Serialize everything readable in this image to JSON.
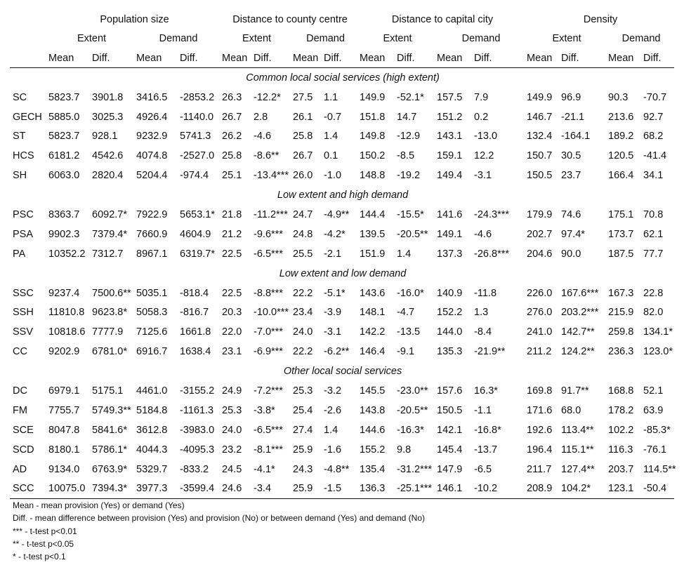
{
  "groups": [
    "Population size",
    "Distance to county centre",
    "Distance to capital city",
    "Density"
  ],
  "subgroups": [
    "Extent",
    "Demand"
  ],
  "stats": [
    "Mean",
    "Diff."
  ],
  "sections": [
    {
      "title": "Common local social services (high extent)",
      "rows": [
        {
          "label": "SC",
          "cells": [
            "5823.7",
            "3901.8",
            "3416.5",
            "-2853.2",
            "26.3",
            "-12.2*",
            "27.5",
            "1.1",
            "149.9",
            "-52.1*",
            "157.5",
            "7.9",
            "149.9",
            "96.9",
            "90.3",
            "-70.7"
          ]
        },
        {
          "label": "GECH",
          "cells": [
            "5885.0",
            "3025.3",
            "4926.4",
            "-1140.0",
            "26.7",
            "2.8",
            "26.1",
            "-0.7",
            "151.8",
            "14.7",
            "151.2",
            "0.2",
            "146.7",
            "-21.1",
            "213.6",
            "92.7"
          ]
        },
        {
          "label": "ST",
          "cells": [
            "5823.7",
            "928.1",
            "9232.9",
            "5741.3",
            "26.2",
            "-4.6",
            "25.8",
            "1.4",
            "149.8",
            "-12.9",
            "143.1",
            "-13.0",
            "132.4",
            "-164.1",
            "189.2",
            "68.2"
          ]
        },
        {
          "label": "HCS",
          "cells": [
            "6181.2",
            "4542.6",
            "4074.8",
            "-2527.0",
            "25.8",
            "-8.6**",
            "26.7",
            "0.1",
            "150.2",
            "-8.5",
            "159.1",
            "12.2",
            "150.7",
            "30.5",
            "120.5",
            "-41.4"
          ]
        },
        {
          "label": "SH",
          "cells": [
            "6063.0",
            "2820.4",
            "5204.4",
            "-974.4",
            "25.1",
            "-13.4***",
            "26.0",
            "-1.0",
            "148.8",
            "-19.2",
            "149.4",
            "-3.1",
            "150.5",
            "23.7",
            "166.4",
            "34.1"
          ]
        }
      ]
    },
    {
      "title": "Low extent and high demand",
      "rows": [
        {
          "label": "PSC",
          "cells": [
            "8363.7",
            "6092.7*",
            "7922.9",
            "5653.1*",
            "21.8",
            "-11.2***",
            "24.7",
            "-4.9**",
            "144.4",
            "-15.5*",
            "141.6",
            "-24.3***",
            "179.9",
            "74.6",
            "175.1",
            "70.8"
          ]
        },
        {
          "label": "PSA",
          "cells": [
            "9902.3",
            "7379.4*",
            "7660.9",
            "4604.9",
            "21.2",
            "-9.6***",
            "24.8",
            "-4.2*",
            "139.5",
            "-20.5**",
            "149.1",
            "-4.6",
            "202.7",
            "97.4*",
            "173.7",
            "62.1"
          ]
        },
        {
          "label": "PA",
          "cells": [
            "10352.2",
            "7312.7",
            "8967.1",
            "6319.7*",
            "22.5",
            "-6.5***",
            "25.5",
            "-2.1",
            "151.9",
            "1.4",
            "137.3",
            "-26.8***",
            "204.6",
            "90.0",
            "187.5",
            "77.7"
          ]
        }
      ]
    },
    {
      "title": "Low extent and low demand",
      "rows": [
        {
          "label": "SSC",
          "cells": [
            "9237.4",
            "7500.6**",
            "5035.1",
            "-818.4",
            "22.5",
            "-8.8***",
            "22.2",
            "-5.1*",
            "143.6",
            "-16.0*",
            "140.9",
            "-11.8",
            "226.0",
            "167.6***",
            "167.3",
            "22.8"
          ]
        },
        {
          "label": "SSH",
          "cells": [
            "11810.8",
            "9623.8*",
            "5058.3",
            "-816.7",
            "20.3",
            "-10.0***",
            "23.4",
            "-3.9",
            "148.1",
            "-4.7",
            "152.2",
            "1.3",
            "276.0",
            "203.2***",
            "215.9",
            "82.0"
          ]
        },
        {
          "label": "SSV",
          "cells": [
            "10818.6",
            "7777.9",
            "7125.6",
            "1661.8",
            "22.0",
            "-7.0***",
            "24.0",
            "-3.1",
            "142.2",
            "-13.5",
            "144.0",
            "-8.4",
            "241.0",
            "142.7**",
            "259.8",
            "134.1*"
          ]
        },
        {
          "label": "CC",
          "cells": [
            "9202.9",
            "6781.0*",
            "6916.7",
            "1638.4",
            "23.1",
            "-6.9***",
            "22.2",
            "-6.2**",
            "146.4",
            "-9.1",
            "135.3",
            "-21.9**",
            "211.2",
            "124.2**",
            "236.3",
            "123.0*"
          ]
        }
      ]
    },
    {
      "title": "Other local social services",
      "rows": [
        {
          "label": "DC",
          "cells": [
            "6979.1",
            "5175.1",
            "4461.0",
            "-3155.2",
            "24.9",
            "-7.2***",
            "25.3",
            "-3.2",
            "145.5",
            "-23.0**",
            "157.6",
            "16.3*",
            "169.8",
            "91.7**",
            "168.8",
            "52.1"
          ]
        },
        {
          "label": "FM",
          "cells": [
            "7755.7",
            "5749.3**",
            "5184.8",
            "-1161.3",
            "25.3",
            "-3.8*",
            "25.4",
            "-2.6",
            "143.8",
            "-20.5**",
            "150.5",
            "-1.1",
            "171.6",
            "68.0",
            "178.2",
            "63.9"
          ]
        },
        {
          "label": "SCE",
          "cells": [
            "8047.8",
            "5841.6*",
            "3612.8",
            "-3983.0",
            "24.0",
            "-6.5***",
            "27.4",
            "1.4",
            "144.6",
            "-16.3*",
            "142.1",
            "-16.8*",
            "192.6",
            "113.4**",
            "102.2",
            "-85.3*"
          ]
        },
        {
          "label": "SCD",
          "cells": [
            "8180.1",
            "5786.1*",
            "4044.3",
            "-4095.3",
            "23.2",
            "-8.1***",
            "25.9",
            "-1.6",
            "155.2",
            "9.8",
            "145.4",
            "-13.7",
            "196.4",
            "115.1**",
            "116.3",
            "-76.1"
          ]
        },
        {
          "label": "AD",
          "cells": [
            "9134.0",
            "6763.9*",
            "5329.7",
            "-833.2",
            "24.5",
            "-4.1*",
            "24.3",
            "-4.8**",
            "135.4",
            "-31.2***",
            "147.9",
            "-6.5",
            "211.7",
            "127.4**",
            "203.7",
            "114.5**"
          ]
        },
        {
          "label": "SCC",
          "cells": [
            "10075.0",
            "7394.3*",
            "3977.3",
            "-3599.4",
            "24.6",
            "-3.4",
            "25.9",
            "-1.5",
            "136.3",
            "-25.1***",
            "146.1",
            "-10.2",
            "208.9",
            "104.2*",
            "123.1",
            "-50.4"
          ]
        }
      ]
    }
  ],
  "notes": [
    "Mean - mean provision (Yes) or demand (Yes)",
    "Diff.  - mean difference between provision (Yes) and provision (No) or between demand (Yes) and demand (No)",
    "*** - t-test p<0.01",
    "** -  t-test p<0.05",
    "* - t-test p<0.1"
  ]
}
